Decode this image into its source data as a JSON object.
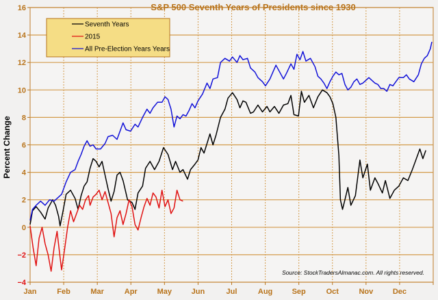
{
  "chart_data": {
    "type": "line",
    "title": "S&P 500 Seventh Years of Presidents since 1930",
    "xlabel": "",
    "ylabel": "Percent Change",
    "ylim": [
      -4,
      16
    ],
    "yticks": [
      16,
      14,
      12,
      10,
      8,
      6,
      4,
      2,
      0,
      -2,
      -4
    ],
    "xlim": [
      0,
      12
    ],
    "x_unit": "months elapsed since Jan 1",
    "x_tick_labels": [
      "Jan",
      "Feb",
      "Mar",
      "Apr",
      "May",
      "Jun",
      "Jul",
      "Aug",
      "Sep",
      "Oct",
      "Nov",
      "Dec"
    ],
    "grid": true,
    "legend_position": "top-left",
    "source_note": "Source: StockTradersAlmanac.com. All rights reserved.",
    "series": [
      {
        "name": "Seventh Years",
        "color": "#000000",
        "points": [
          [
            0,
            0.2
          ],
          [
            0.08,
            1.2
          ],
          [
            0.2,
            1.5
          ],
          [
            0.35,
            1.1
          ],
          [
            0.5,
            0.6
          ],
          [
            0.6,
            1.4
          ],
          [
            0.75,
            2.0
          ],
          [
            0.85,
            1.6
          ],
          [
            0.95,
            0.8
          ],
          [
            1.0,
            0.1
          ],
          [
            1.1,
            1.2
          ],
          [
            1.2,
            2.4
          ],
          [
            1.35,
            2.7
          ],
          [
            1.5,
            2.1
          ],
          [
            1.6,
            1.3
          ],
          [
            1.7,
            2.3
          ],
          [
            1.8,
            3.0
          ],
          [
            1.9,
            3.3
          ],
          [
            2.0,
            4.3
          ],
          [
            2.1,
            5.0
          ],
          [
            2.2,
            4.8
          ],
          [
            2.3,
            4.4
          ],
          [
            2.4,
            4.8
          ],
          [
            2.5,
            3.8
          ],
          [
            2.6,
            2.8
          ],
          [
            2.7,
            1.9
          ],
          [
            2.8,
            2.6
          ],
          [
            2.9,
            3.8
          ],
          [
            3.0,
            4.0
          ],
          [
            3.1,
            3.4
          ],
          [
            3.25,
            2.0
          ],
          [
            3.4,
            1.8
          ],
          [
            3.5,
            1.3
          ],
          [
            3.6,
            2.5
          ],
          [
            3.75,
            3.0
          ],
          [
            3.85,
            4.3
          ],
          [
            4.0,
            4.8
          ],
          [
            4.15,
            4.2
          ],
          [
            4.3,
            4.8
          ],
          [
            4.45,
            5.8
          ],
          [
            4.6,
            5.3
          ],
          [
            4.75,
            4.2
          ],
          [
            4.85,
            4.8
          ],
          [
            5.0,
            4.0
          ],
          [
            5.1,
            4.2
          ],
          [
            5.25,
            3.5
          ],
          [
            5.35,
            4.2
          ],
          [
            5.5,
            4.6
          ],
          [
            5.6,
            4.9
          ],
          [
            5.7,
            5.8
          ],
          [
            5.8,
            5.4
          ],
          [
            5.9,
            6.1
          ],
          [
            6.0,
            6.8
          ],
          [
            6.1,
            6.0
          ],
          [
            6.2,
            6.7
          ],
          [
            6.35,
            8.0
          ],
          [
            6.5,
            8.6
          ],
          [
            6.6,
            9.4
          ],
          [
            6.75,
            9.8
          ],
          [
            6.9,
            9.3
          ],
          [
            7.0,
            8.7
          ],
          [
            7.1,
            9.2
          ],
          [
            7.2,
            9.1
          ],
          [
            7.35,
            8.3
          ],
          [
            7.45,
            8.4
          ],
          [
            7.6,
            8.9
          ],
          [
            7.75,
            8.4
          ],
          [
            7.9,
            8.8
          ],
          [
            8.0,
            8.4
          ],
          [
            8.15,
            8.8
          ],
          [
            8.3,
            8.3
          ],
          [
            8.45,
            8.9
          ],
          [
            8.6,
            9.0
          ],
          [
            8.7,
            9.6
          ],
          [
            8.8,
            8.2
          ],
          [
            8.95,
            8.1
          ],
          [
            9.05,
            9.9
          ],
          [
            9.15,
            9.1
          ],
          [
            9.3,
            9.6
          ],
          [
            9.45,
            8.7
          ],
          [
            9.6,
            9.5
          ],
          [
            9.75,
            10.0
          ],
          [
            9.9,
            9.8
          ],
          [
            10.0,
            9.5
          ],
          [
            10.1,
            9.0
          ],
          [
            10.2,
            8.0
          ],
          [
            10.3,
            5.2
          ],
          [
            10.35,
            2.0
          ],
          [
            10.42,
            1.3
          ],
          [
            10.5,
            2.0
          ],
          [
            10.6,
            2.9
          ],
          [
            10.7,
            1.6
          ],
          [
            10.85,
            2.3
          ],
          [
            11.0,
            4.9
          ],
          [
            11.1,
            3.6
          ],
          [
            11.25,
            4.6
          ],
          [
            11.35,
            2.7
          ],
          [
            11.5,
            3.6
          ],
          [
            11.6,
            3.2
          ],
          [
            11.75,
            2.5
          ],
          [
            11.85,
            3.4
          ],
          [
            12.0,
            2.1
          ],
          [
            12.15,
            2.7
          ],
          [
            12.3,
            3.0
          ],
          [
            12.45,
            3.6
          ],
          [
            12.6,
            3.4
          ],
          [
            12.75,
            4.2
          ],
          [
            12.85,
            4.8
          ],
          [
            13.0,
            5.7
          ],
          [
            13.1,
            5.0
          ],
          [
            13.2,
            5.6
          ]
        ]
      },
      {
        "name": "2015",
        "color": "#e01010",
        "points": [
          [
            0,
            0.1
          ],
          [
            0.1,
            -1.5
          ],
          [
            0.2,
            -2.8
          ],
          [
            0.3,
            -0.8
          ],
          [
            0.4,
            0.0
          ],
          [
            0.5,
            -1.2
          ],
          [
            0.6,
            -2.0
          ],
          [
            0.7,
            -3.2
          ],
          [
            0.8,
            -1.5
          ],
          [
            0.9,
            -0.3
          ],
          [
            1.0,
            -2.2
          ],
          [
            1.05,
            -3.1
          ],
          [
            1.15,
            -1.6
          ],
          [
            1.25,
            0.0
          ],
          [
            1.35,
            1.2
          ],
          [
            1.45,
            0.4
          ],
          [
            1.55,
            1.0
          ],
          [
            1.65,
            1.6
          ],
          [
            1.75,
            1.3
          ],
          [
            1.85,
            2.0
          ],
          [
            1.95,
            2.3
          ],
          [
            2.0,
            1.6
          ],
          [
            2.1,
            2.2
          ],
          [
            2.2,
            2.4
          ],
          [
            2.3,
            2.7
          ],
          [
            2.4,
            2.0
          ],
          [
            2.5,
            2.6
          ],
          [
            2.6,
            1.8
          ],
          [
            2.7,
            1.0
          ],
          [
            2.8,
            -0.7
          ],
          [
            2.9,
            0.7
          ],
          [
            3.0,
            1.2
          ],
          [
            3.1,
            0.2
          ],
          [
            3.2,
            1.0
          ],
          [
            3.3,
            2.0
          ],
          [
            3.4,
            1.5
          ],
          [
            3.5,
            0.2
          ],
          [
            3.6,
            -0.2
          ],
          [
            3.7,
            0.7
          ],
          [
            3.8,
            1.5
          ],
          [
            3.9,
            2.1
          ],
          [
            4.0,
            1.6
          ],
          [
            4.1,
            2.5
          ],
          [
            4.2,
            2.2
          ],
          [
            4.3,
            1.4
          ],
          [
            4.4,
            2.7
          ],
          [
            4.5,
            1.5
          ],
          [
            4.6,
            2.0
          ],
          [
            4.7,
            1.0
          ],
          [
            4.8,
            1.4
          ],
          [
            4.9,
            2.7
          ],
          [
            5.0,
            2.0
          ],
          [
            5.1,
            1.9
          ]
        ]
      },
      {
        "name": "All Pre-Election Years Years",
        "color": "#1010d8",
        "points": [
          [
            0,
            0.5
          ],
          [
            0.08,
            1.3
          ],
          [
            0.2,
            1.6
          ],
          [
            0.35,
            1.9
          ],
          [
            0.5,
            1.6
          ],
          [
            0.65,
            2.0
          ],
          [
            0.8,
            1.9
          ],
          [
            0.95,
            2.2
          ],
          [
            1.05,
            2.4
          ],
          [
            1.2,
            3.3
          ],
          [
            1.35,
            4.0
          ],
          [
            1.5,
            4.2
          ],
          [
            1.6,
            4.8
          ],
          [
            1.7,
            5.3
          ],
          [
            1.8,
            5.9
          ],
          [
            1.9,
            6.3
          ],
          [
            2.0,
            5.9
          ],
          [
            2.1,
            6.0
          ],
          [
            2.2,
            5.7
          ],
          [
            2.35,
            5.7
          ],
          [
            2.5,
            6.1
          ],
          [
            2.6,
            6.6
          ],
          [
            2.75,
            6.7
          ],
          [
            2.9,
            6.4
          ],
          [
            3.0,
            7.0
          ],
          [
            3.1,
            7.6
          ],
          [
            3.2,
            7.1
          ],
          [
            3.35,
            7.0
          ],
          [
            3.5,
            7.5
          ],
          [
            3.6,
            7.3
          ],
          [
            3.75,
            8.0
          ],
          [
            3.9,
            8.6
          ],
          [
            4.0,
            8.3
          ],
          [
            4.1,
            8.7
          ],
          [
            4.25,
            9.1
          ],
          [
            4.4,
            9.1
          ],
          [
            4.5,
            9.5
          ],
          [
            4.6,
            9.3
          ],
          [
            4.7,
            8.6
          ],
          [
            4.8,
            7.3
          ],
          [
            4.9,
            8.1
          ],
          [
            5.0,
            7.9
          ],
          [
            5.1,
            8.2
          ],
          [
            5.2,
            8.1
          ],
          [
            5.3,
            8.5
          ],
          [
            5.4,
            9.0
          ],
          [
            5.5,
            8.7
          ],
          [
            5.6,
            9.2
          ],
          [
            5.75,
            9.7
          ],
          [
            5.9,
            10.5
          ],
          [
            6.0,
            10.1
          ],
          [
            6.1,
            10.8
          ],
          [
            6.25,
            10.9
          ],
          [
            6.35,
            12.0
          ],
          [
            6.5,
            12.3
          ],
          [
            6.65,
            12.1
          ],
          [
            6.75,
            12.4
          ],
          [
            6.9,
            12.0
          ],
          [
            7.0,
            12.5
          ],
          [
            7.1,
            12.2
          ],
          [
            7.25,
            12.3
          ],
          [
            7.35,
            11.6
          ],
          [
            7.5,
            11.3
          ],
          [
            7.6,
            10.9
          ],
          [
            7.75,
            10.6
          ],
          [
            7.85,
            10.3
          ],
          [
            8.0,
            10.8
          ],
          [
            8.1,
            11.3
          ],
          [
            8.2,
            11.8
          ],
          [
            8.3,
            11.4
          ],
          [
            8.45,
            10.8
          ],
          [
            8.55,
            11.2
          ],
          [
            8.7,
            11.9
          ],
          [
            8.8,
            11.5
          ],
          [
            8.9,
            12.6
          ],
          [
            9.0,
            12.2
          ],
          [
            9.1,
            12.8
          ],
          [
            9.2,
            12.1
          ],
          [
            9.35,
            12.3
          ],
          [
            9.5,
            11.7
          ],
          [
            9.6,
            11.0
          ],
          [
            9.7,
            10.8
          ],
          [
            9.8,
            10.5
          ],
          [
            9.9,
            10.1
          ],
          [
            10.0,
            10.6
          ],
          [
            10.1,
            11.0
          ],
          [
            10.2,
            11.3
          ],
          [
            10.3,
            11.1
          ],
          [
            10.4,
            11.2
          ],
          [
            10.5,
            10.4
          ],
          [
            10.6,
            10.0
          ],
          [
            10.7,
            10.2
          ],
          [
            10.8,
            10.6
          ],
          [
            10.9,
            10.8
          ],
          [
            11.0,
            10.4
          ],
          [
            11.1,
            10.5
          ],
          [
            11.2,
            10.7
          ],
          [
            11.3,
            10.9
          ],
          [
            11.4,
            10.7
          ],
          [
            11.5,
            10.5
          ],
          [
            11.6,
            10.4
          ],
          [
            11.7,
            10.1
          ],
          [
            11.8,
            10.1
          ],
          [
            11.9,
            9.9
          ],
          [
            12.0,
            10.4
          ],
          [
            12.1,
            10.3
          ],
          [
            12.2,
            10.6
          ],
          [
            12.3,
            10.9
          ],
          [
            12.45,
            10.9
          ],
          [
            12.55,
            11.1
          ],
          [
            12.65,
            10.8
          ],
          [
            12.8,
            10.6
          ],
          [
            12.95,
            11.1
          ],
          [
            13.05,
            11.9
          ],
          [
            13.15,
            12.3
          ],
          [
            13.25,
            12.5
          ],
          [
            13.35,
            13.0
          ],
          [
            13.4,
            13.5
          ]
        ]
      }
    ]
  }
}
